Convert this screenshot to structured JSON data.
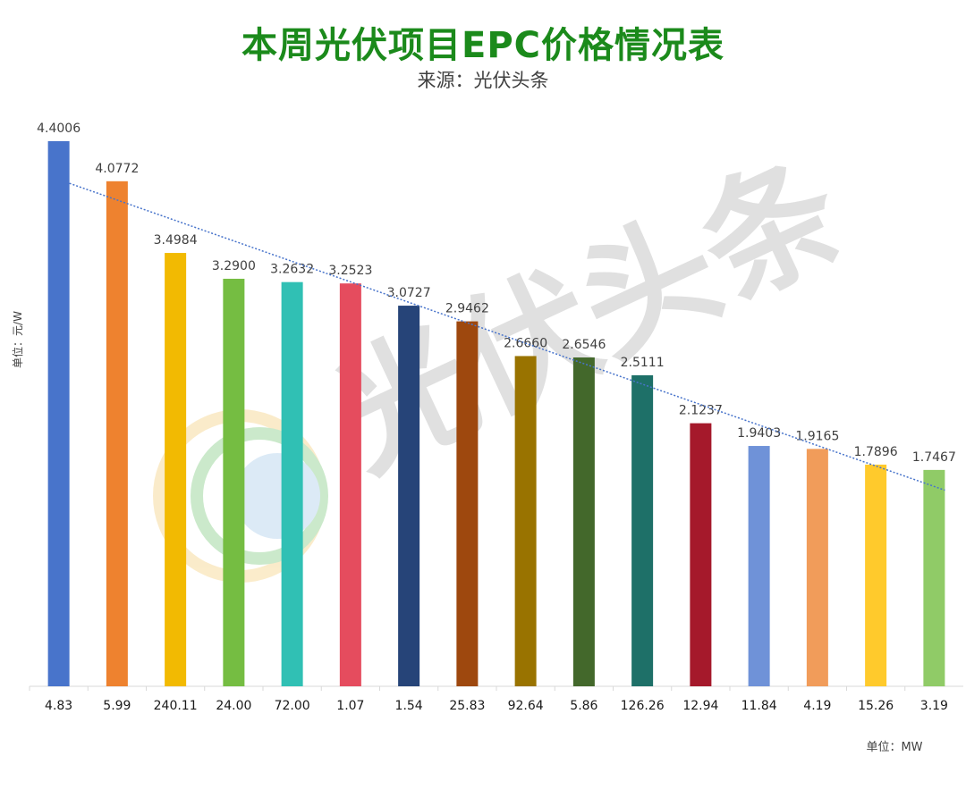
{
  "chart_data": {
    "type": "bar",
    "title": "本周光伏项目EPC价格情况表",
    "subtitle": "来源：光伏头条",
    "ylabel": "单位：元/W",
    "xlabel": "单位：MW",
    "ylim": [
      0,
      4.4
    ],
    "grid": false,
    "legend": "none",
    "trendline": "linear",
    "categories": [
      "4.83",
      "5.99",
      "240.11",
      "24.00",
      "72.00",
      "1.07",
      "1.54",
      "25.83",
      "92.64",
      "5.86",
      "126.26",
      "12.94",
      "11.84",
      "4.19",
      "15.26",
      "3.19"
    ],
    "values": [
      4.4006,
      4.0772,
      3.4984,
      3.29,
      3.2632,
      3.2523,
      3.0727,
      2.9462,
      2.666,
      2.6546,
      2.5111,
      2.1237,
      1.9403,
      1.9165,
      1.7896,
      1.7467
    ],
    "data_labels": [
      "4.4006",
      "4.0772",
      "3.4984",
      "3.2900",
      "3.2632",
      "3.2523",
      "3.0727",
      "2.9462",
      "2.6660",
      "2.6546",
      "2.5111",
      "2.1237",
      "1.9403",
      "1.9165",
      "1.7896",
      "1.7467"
    ],
    "colors": [
      "#4874CB",
      "#EE822F",
      "#F2BA02",
      "#75BD42",
      "#30C0B4",
      "#E54C5E",
      "#264478",
      "#9E480E",
      "#997300",
      "#43682B",
      "#1E7068",
      "#A5192B",
      "#6F92D8",
      "#F19C5A",
      "#FFCA2C",
      "#90CB67"
    ],
    "trendline_color": "#4874CB",
    "title_color": "#1B8A1B"
  },
  "watermark": "光伏头条"
}
